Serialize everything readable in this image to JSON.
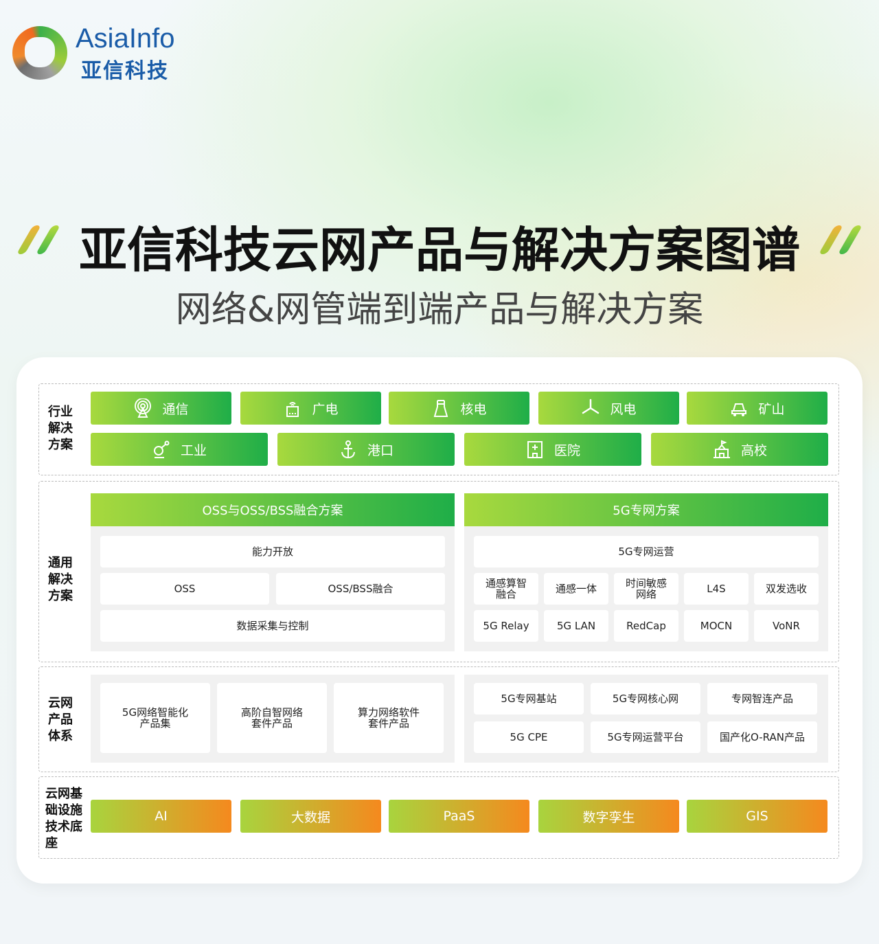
{
  "logo": {
    "en": "AsiaInfo",
    "cn": "亚信科技"
  },
  "title": "亚信科技云网产品与解决方案图谱",
  "subtitle": "网络&网管端到端产品与解决方案",
  "colors": {
    "green_start": "#a8d93e",
    "green_end": "#1fae48",
    "orange_end": "#f5891e",
    "brand_blue": "#1a5ca8"
  },
  "industry": {
    "label": "行业解决方案",
    "row1": [
      {
        "label": "通信",
        "icon": "antenna-icon"
      },
      {
        "label": "广电",
        "icon": "router-icon"
      },
      {
        "label": "核电",
        "icon": "cooling-tower-icon"
      },
      {
        "label": "风电",
        "icon": "wind-turbine-icon"
      },
      {
        "label": "矿山",
        "icon": "mining-truck-icon"
      }
    ],
    "row2": [
      {
        "label": "工业",
        "icon": "robot-arm-icon"
      },
      {
        "label": "港口",
        "icon": "anchor-icon"
      },
      {
        "label": "医院",
        "icon": "hospital-icon"
      },
      {
        "label": "高校",
        "icon": "school-icon"
      }
    ]
  },
  "general": {
    "label": "通用解决方案",
    "oss": {
      "header": "OSS与OSS/BSS融合方案",
      "top": "能力开放",
      "mid": [
        "OSS",
        "OSS/BSS融合"
      ],
      "bottom": "数据采集与控制"
    },
    "fiveg": {
      "header": "5G专网方案",
      "top": "5G专网运营",
      "row1": [
        "通感算智\n融合",
        "通感一体",
        "时间敏感\n网络",
        "L4S",
        "双发选收"
      ],
      "row2": [
        "5G Relay",
        "5G LAN",
        "RedCap",
        "MOCN",
        "VoNR"
      ]
    }
  },
  "products": {
    "label": "云网产品体系",
    "left": [
      "5G网络智能化\n产品集",
      "高阶自智网络\n套件产品",
      "算力网络软件\n套件产品"
    ],
    "right": [
      "5G专网基站",
      "5G专网核心网",
      "专网智连产品",
      "5G CPE",
      "5G专网运营平台",
      "国产化O-RAN产品"
    ]
  },
  "infra": {
    "label": "云网基础设施技术底座",
    "items": [
      "AI",
      "大数据",
      "PaaS",
      "数字孪生",
      "GIS"
    ]
  }
}
